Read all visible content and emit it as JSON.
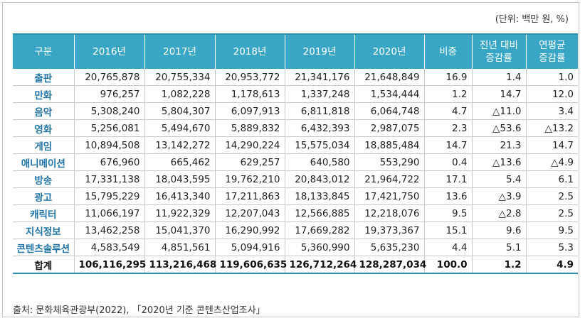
{
  "unit_label": "(단위: 백만 원, %)",
  "headers": [
    "구분",
    "2016년",
    "2017년",
    "2018년",
    "2019년",
    "2020년",
    "비중",
    "전년 대비\n증감률",
    "연평균\n증감률"
  ],
  "rows": [
    [
      "출판",
      "20,765,878",
      "20,755,334",
      "20,953,772",
      "21,341,176",
      "21,648,849",
      "16.9",
      "1.4",
      "1.0"
    ],
    [
      "만화",
      "976,257",
      "1,082,228",
      "1,178,613",
      "1,337,248",
      "1,534,444",
      "1.2",
      "14.7",
      "12.0"
    ],
    [
      "음악",
      "5,308,240",
      "5,804,307",
      "6,097,913",
      "6,811,818",
      "6,064,748",
      "4.7",
      "△11.0",
      "3.4"
    ],
    [
      "영화",
      "5,256,081",
      "5,494,670",
      "5,889,832",
      "6,432,393",
      "2,987,075",
      "2.3",
      "△53.6",
      "△13.2"
    ],
    [
      "게임",
      "10,894,508",
      "13,142,272",
      "14,290,224",
      "15,575,034",
      "18,885,484",
      "14.7",
      "21.3",
      "14.7"
    ],
    [
      "애니메이션",
      "676,960",
      "665,462",
      "629,257",
      "640,580",
      "553,290",
      "0.4",
      "△13.6",
      "△4.9"
    ],
    [
      "방송",
      "17,331,138",
      "18,043,595",
      "19,762,210",
      "20,843,012",
      "21,964,722",
      "17.1",
      "5.4",
      "6.1"
    ],
    [
      "광고",
      "15,795,229",
      "16,413,340",
      "17,211,863",
      "18,133,845",
      "17,421,750",
      "13.6",
      "△3.9",
      "2.5"
    ],
    [
      "캐릭터",
      "11,066,197",
      "11,922,329",
      "12,207,043",
      "12,566,885",
      "12,218,076",
      "9.5",
      "△2.8",
      "2.5"
    ],
    [
      "지식정보",
      "13,462,258",
      "15,041,370",
      "16,290,992",
      "17,669,282",
      "19,373,367",
      "15.1",
      "9.6",
      "9.5"
    ],
    [
      "콘텐츠솔루션",
      "4,583,549",
      "4,851,561",
      "5,094,916",
      "5,360,990",
      "5,635,230",
      "4.4",
      "5.1",
      "5.3"
    ]
  ],
  "total_row": [
    "합계",
    "106,116,295",
    "113,216,468",
    "119,606,635",
    "126,712,264",
    "128,287,034",
    "100.0",
    "1.2",
    "4.9"
  ],
  "source": "출처: 문화체육관광부(2022), 「2020년 기준 콘텐츠산업조사」"
}
